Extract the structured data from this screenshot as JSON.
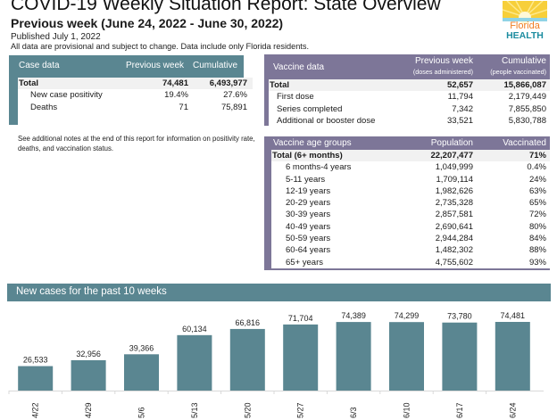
{
  "header": {
    "title": "COVID-19 Weekly Situation Report: State Overview",
    "subtitle": "Previous week (June 24, 2022 - June 30, 2022)",
    "published": "Published July 1, 2022",
    "disclaimer": "All data are provisional and subject to change. Data include only Florida residents.",
    "logo": {
      "line1": "Florida",
      "line2": "HEALTH",
      "icon": "sun-logo-icon"
    }
  },
  "case_table": {
    "columns": [
      "Case data",
      "Previous week",
      "Cumulative"
    ],
    "rows": [
      {
        "label": "Total",
        "prev": "74,481",
        "cum": "6,493,977"
      },
      {
        "label": "New case positivity",
        "prev": "19.4%",
        "cum": "27.6%"
      },
      {
        "label": "Deaths",
        "prev": "71",
        "cum": "75,891"
      }
    ]
  },
  "vaccine_table": {
    "columns": [
      "Vaccine data",
      "Previous week",
      "Cumulative"
    ],
    "subcolumns": [
      "(doses administered)",
      "(people vaccinated)"
    ],
    "rows": [
      {
        "label": "Total",
        "prev": "52,657",
        "cum": "15,866,087"
      },
      {
        "label": "First dose",
        "prev": "11,794",
        "cum": "2,179,449"
      },
      {
        "label": "Series completed",
        "prev": "7,342",
        "cum": "7,855,850"
      },
      {
        "label": "Additional or booster dose",
        "prev": "33,521",
        "cum": "5,830,788"
      }
    ]
  },
  "note": "See additional notes at the end of this report for information on positivity rate, deaths, and vaccination status.",
  "age_table": {
    "columns": [
      "Vaccine age groups",
      "Population",
      "Vaccinated"
    ],
    "rows": [
      {
        "label": "Total (6+ months)",
        "pop": "22,207,477",
        "vac": "71%"
      },
      {
        "label": "6 months-4 years",
        "pop": "1,049,999",
        "vac": "0.4%"
      },
      {
        "label": "5-11 years",
        "pop": "1,709,114",
        "vac": "24%"
      },
      {
        "label": "12-19 years",
        "pop": "1,982,626",
        "vac": "63%"
      },
      {
        "label": "20-29 years",
        "pop": "2,735,328",
        "vac": "65%"
      },
      {
        "label": "30-39 years",
        "pop": "2,857,581",
        "vac": "72%"
      },
      {
        "label": "40-49 years",
        "pop": "2,690,641",
        "vac": "80%"
      },
      {
        "label": "50-59 years",
        "pop": "2,944,284",
        "vac": "84%"
      },
      {
        "label": "60-64 years",
        "pop": "1,482,302",
        "vac": "88%"
      },
      {
        "label": "65+ years",
        "pop": "4,755,602",
        "vac": "93%"
      }
    ]
  },
  "colors": {
    "teal": "#5a8691",
    "purple": "#7d7698"
  },
  "chart_data": {
    "type": "bar",
    "title": "New cases for the past 10 weeks",
    "categories": [
      "4/22",
      "4/29",
      "5/6",
      "5/13",
      "5/20",
      "5/27",
      "6/3",
      "6/10",
      "6/17",
      "6/24"
    ],
    "values": [
      26533,
      32956,
      39366,
      60134,
      66816,
      71704,
      74389,
      74299,
      73780,
      74481
    ],
    "labels": [
      "26,533",
      "32,956",
      "39,366",
      "60,134",
      "66,816",
      "71,704",
      "74,389",
      "74,299",
      "73,780",
      "74,481"
    ],
    "xlabel": "",
    "ylabel": "",
    "ylim": [
      0,
      80000
    ],
    "grid": false,
    "color": "#5a8691"
  }
}
